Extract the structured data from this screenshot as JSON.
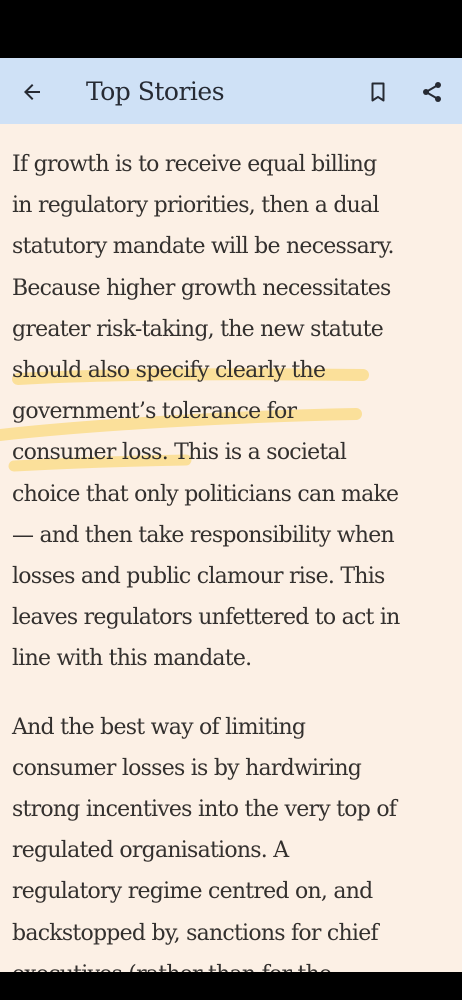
{
  "app_bar": {
    "title": "Top Stories",
    "back_icon": "arrow-left-icon",
    "bookmark_icon": "bookmark-outline-icon",
    "share_icon": "share-icon",
    "background_color": "#cfe1f6"
  },
  "article": {
    "background_color": "#fcf0e5",
    "highlight_color": "#fbd87a",
    "paragraphs": [
      {
        "lines": [
          "If growth is to receive equal billing",
          "in regulatory priorities, then a dual",
          "statutory mandate will be necessary.",
          "Because higher growth necessitates",
          "greater risk-taking, the new statute",
          "should also specify clearly the",
          "government’s tolerance for",
          "consumer loss. This is a societal",
          "choice that only politicians can make",
          "— and then take responsibility when",
          "losses and public clamour rise. This",
          "leaves regulators unfettered to act in",
          "line with this mandate."
        ],
        "highlighted_text": "should also specify clearly the government’s tolerance for consumer loss."
      },
      {
        "lines": [
          "And the best way of limiting",
          "consumer losses is by hardwiring",
          "strong incentives into the very top of",
          "regulated organisations. A",
          "regulatory regime centred on, and",
          "backstopped by, sanctions for chief",
          "executives (rather than for the"
        ]
      }
    ]
  }
}
